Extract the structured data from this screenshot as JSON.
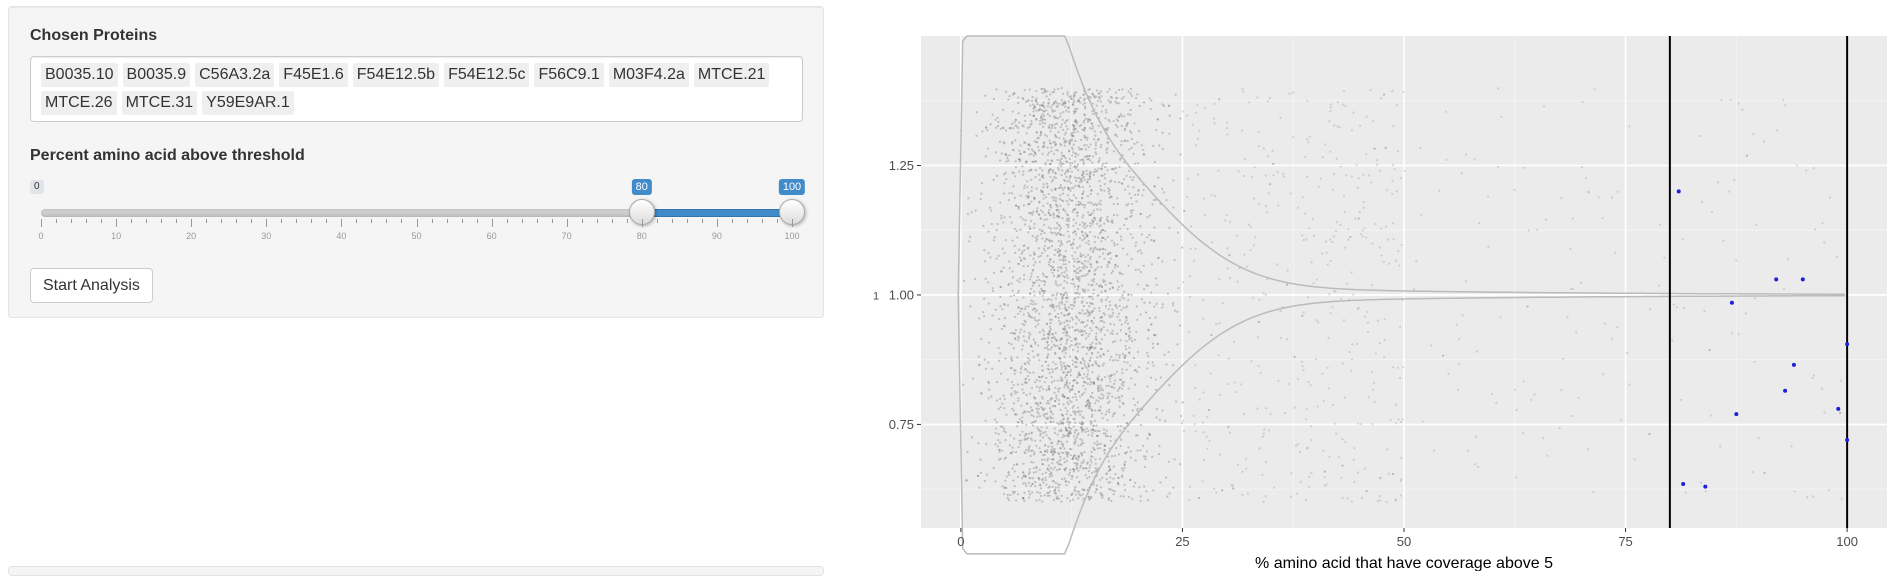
{
  "protein_input": {
    "label": "Chosen Proteins",
    "chips": [
      "B0035.10",
      "B0035.9",
      "C56A3.2a",
      "F45E1.6",
      "F54E12.5b",
      "F54E12.5c",
      "F56C9.1",
      "M03F4.2a",
      "MTCE.21",
      "MTCE.26",
      "MTCE.31",
      "Y59E9AR.1"
    ]
  },
  "slider": {
    "label": "Percent amino acid above threshold",
    "min": 0,
    "max": 100,
    "from": 80,
    "to": 100,
    "grid_labels": [
      "0",
      "10",
      "20",
      "30",
      "40",
      "50",
      "60",
      "70",
      "80",
      "90",
      "100"
    ],
    "accent_color": "#428bca"
  },
  "actions": {
    "start_label": "Start Analysis"
  },
  "chart_data": {
    "type": "scatter",
    "xlabel": "% amino acid that have coverage above 5",
    "ylabel": "",
    "x_ticks": [
      "0",
      "25",
      "50",
      "75",
      "100"
    ],
    "y_ticks": [
      "0.75",
      "1.00",
      "1.25"
    ],
    "y_axis_category_label": "1",
    "xlim": [
      -4.5,
      104.5
    ],
    "ylim": [
      0.55,
      1.5
    ],
    "grid": true,
    "panel_background": "#ebebeb",
    "vlines": [
      80,
      100
    ],
    "violin": {
      "description": "background distribution of all proteins, dense near 0-25",
      "color": "#bbbbbb"
    },
    "background_points": {
      "color": "#888888",
      "x_range": [
        0,
        100
      ],
      "y_range": [
        0.6,
        1.4
      ]
    },
    "selected_points": {
      "color": "#1f1fd8",
      "points": [
        {
          "x": 81,
          "y": 1.2
        },
        {
          "x": 92,
          "y": 1.03
        },
        {
          "x": 95,
          "y": 1.03
        },
        {
          "x": 87,
          "y": 0.985
        },
        {
          "x": 100,
          "y": 0.905
        },
        {
          "x": 94,
          "y": 0.865
        },
        {
          "x": 93,
          "y": 0.815
        },
        {
          "x": 87.5,
          "y": 0.77
        },
        {
          "x": 99,
          "y": 0.78
        },
        {
          "x": 100,
          "y": 0.72
        },
        {
          "x": 81.5,
          "y": 0.635
        },
        {
          "x": 84,
          "y": 0.63
        }
      ]
    }
  }
}
